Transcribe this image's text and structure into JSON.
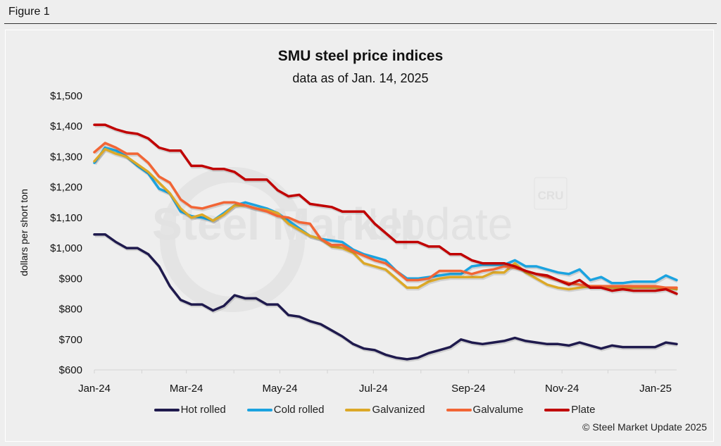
{
  "figure_label": "Figure 1",
  "watermark": {
    "brand_bold": "Steel Market",
    "brand_light": "Update",
    "logo": "CRU"
  },
  "copyright": "© Steel Market Update 2025",
  "chart_data": {
    "type": "line",
    "title": "SMU steel price indices",
    "subtitle": "data as of Jan. 14, 2025",
    "xlabel": "",
    "ylabel": "dollars per short ton",
    "ylim": [
      600,
      1500
    ],
    "yticks": [
      600,
      700,
      800,
      900,
      1000,
      1100,
      1200,
      1300,
      1400,
      1500
    ],
    "ytick_labels": [
      "$600",
      "$700",
      "$800",
      "$900",
      "$1,000",
      "$1,100",
      "$1,200",
      "$1,300",
      "$1,400",
      "$1,500"
    ],
    "xtick_labels": [
      "Jan-24",
      "Mar-24",
      "May-24",
      "Jul-24",
      "Sep-24",
      "Nov-24",
      "Jan-25"
    ],
    "x_frequency": "weekly",
    "x_range": [
      "2024-01-02",
      "2025-01-14"
    ],
    "grid": false,
    "legend_position": "bottom",
    "series": [
      {
        "name": "Hot rolled",
        "color": "#1f1a4d",
        "values": [
          1045,
          1045,
          1020,
          1000,
          1000,
          980,
          940,
          875,
          830,
          815,
          815,
          795,
          810,
          845,
          835,
          835,
          815,
          815,
          780,
          775,
          760,
          750,
          730,
          710,
          685,
          670,
          665,
          650,
          640,
          635,
          640,
          655,
          665,
          675,
          700,
          690,
          685,
          690,
          695,
          705,
          695,
          690,
          685,
          685,
          680,
          690,
          680,
          670,
          680,
          675,
          675,
          675,
          675,
          690,
          685
        ]
      },
      {
        "name": "Cold rolled",
        "color": "#1ba3e0",
        "values": [
          1280,
          1330,
          1320,
          1300,
          1270,
          1245,
          1195,
          1180,
          1120,
          1105,
          1100,
          1090,
          1115,
          1140,
          1150,
          1140,
          1130,
          1115,
          1090,
          1065,
          1040,
          1030,
          1025,
          1020,
          995,
          980,
          970,
          960,
          925,
          900,
          900,
          905,
          910,
          915,
          915,
          940,
          945,
          945,
          945,
          960,
          940,
          940,
          930,
          920,
          915,
          930,
          895,
          905,
          885,
          885,
          890,
          890,
          890,
          910,
          895
        ]
      },
      {
        "name": "Galvanized",
        "color": "#dca827",
        "values": [
          1285,
          1325,
          1310,
          1300,
          1275,
          1250,
          1215,
          1180,
          1130,
          1100,
          1110,
          1090,
          1110,
          1140,
          1140,
          1130,
          1125,
          1115,
          1080,
          1060,
          1040,
          1030,
          1005,
          1000,
          985,
          950,
          940,
          930,
          900,
          870,
          870,
          890,
          900,
          905,
          905,
          905,
          905,
          920,
          920,
          950,
          920,
          900,
          880,
          870,
          865,
          870,
          875,
          875,
          870,
          870,
          870,
          870,
          870,
          870,
          865
        ]
      },
      {
        "name": "Galvalume",
        "color": "#f26535",
        "values": [
          1315,
          1345,
          1330,
          1310,
          1310,
          1280,
          1235,
          1215,
          1160,
          1135,
          1130,
          1140,
          1150,
          1150,
          1140,
          1130,
          1120,
          1105,
          1100,
          1085,
          1080,
          1030,
          1010,
          1010,
          990,
          975,
          960,
          950,
          925,
          895,
          895,
          900,
          925,
          925,
          925,
          915,
          925,
          930,
          940,
          935,
          925,
          915,
          905,
          895,
          885,
          880,
          875,
          875,
          875,
          875,
          875,
          875,
          875,
          870,
          870
        ]
      },
      {
        "name": "Plate",
        "color": "#c00000",
        "values": [
          1405,
          1405,
          1390,
          1380,
          1375,
          1360,
          1330,
          1320,
          1320,
          1270,
          1270,
          1260,
          1260,
          1250,
          1225,
          1225,
          1225,
          1190,
          1170,
          1175,
          1145,
          1140,
          1135,
          1120,
          1120,
          1120,
          1080,
          1050,
          1020,
          1020,
          1020,
          1005,
          1005,
          980,
          980,
          960,
          950,
          950,
          950,
          940,
          925,
          915,
          910,
          895,
          880,
          895,
          870,
          870,
          860,
          865,
          860,
          860,
          860,
          865,
          850
        ]
      }
    ]
  }
}
